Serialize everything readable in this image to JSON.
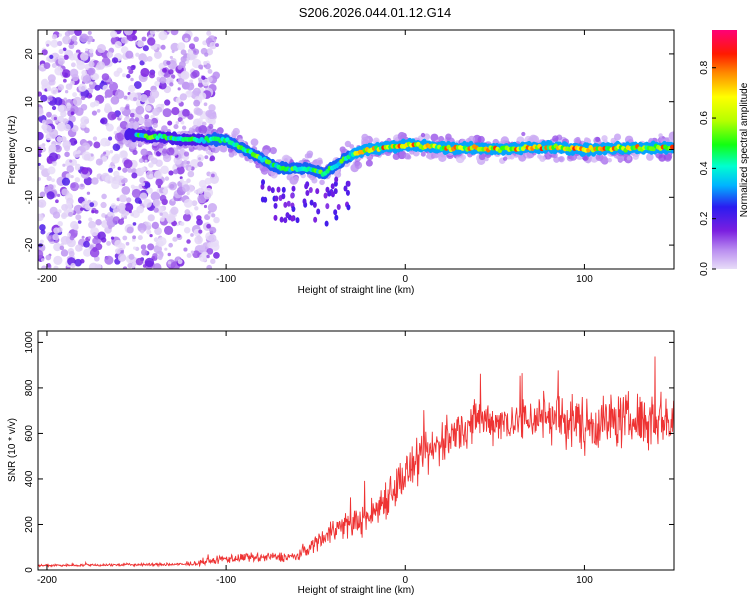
{
  "figure": {
    "title": "S206.2026.044.01.12.G14"
  },
  "chart_data": [
    {
      "type": "heatmap",
      "name": "spectrogram",
      "xlabel": "Height of straight line (km)",
      "ylabel": "Frequency (Hz)",
      "xlim": [
        -205,
        150
      ],
      "ylim": [
        -25,
        25
      ],
      "xticks": [
        -200,
        -100,
        0,
        100
      ],
      "yticks": [
        -20,
        -10,
        0,
        10,
        20
      ],
      "colorbar": {
        "label": "Normalized spectral amplitude",
        "range": [
          0.0,
          0.95
        ],
        "ticks": [
          "0.0",
          "0.2",
          "0.4",
          "0.6",
          "0.8"
        ],
        "tick_values": [
          0.0,
          0.2,
          0.4,
          0.6,
          0.8
        ]
      },
      "ridge": {
        "description_points_x": [
          -150,
          -120,
          -100,
          -80,
          -70,
          -55,
          -45,
          -30,
          -20,
          0,
          20,
          50,
          80,
          100,
          150
        ],
        "description_points_y": [
          3,
          2,
          2,
          -2,
          -4,
          -4,
          -5,
          -1,
          0,
          1,
          0.5,
          0,
          0.5,
          0,
          0.5
        ]
      },
      "noise_region_x": [
        -205,
        -110
      ]
    },
    {
      "type": "line",
      "name": "snr",
      "xlabel": "Height of straight line (km)",
      "ylabel": "SNR (10 * v/v)",
      "xlim": [
        -205,
        150
      ],
      "ylim": [
        0,
        1050
      ],
      "xticks": [
        -200,
        -100,
        0,
        100
      ],
      "yticks": [
        0,
        200,
        400,
        600,
        800,
        1000
      ],
      "color": "#ee3333",
      "envelope": {
        "x": [
          -205,
          -120,
          -100,
          -80,
          -60,
          -40,
          -20,
          -10,
          0,
          20,
          40,
          60,
          80,
          100,
          120,
          150
        ],
        "mean": [
          20,
          25,
          50,
          55,
          60,
          180,
          230,
          330,
          420,
          560,
          660,
          650,
          680,
          640,
          660,
          660
        ],
        "spread": [
          8,
          10,
          30,
          30,
          30,
          80,
          100,
          140,
          140,
          140,
          130,
          130,
          170,
          180,
          170,
          170
        ]
      }
    }
  ]
}
